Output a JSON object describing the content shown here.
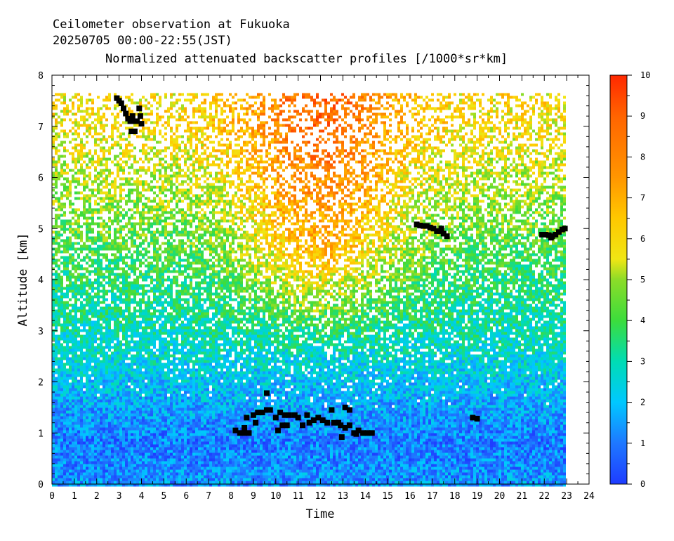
{
  "chart_data": {
    "type": "heatmap",
    "title_lines": [
      "Ceilometer observation at Fukuoka",
      "20250705  00:00-22:55(JST)",
      "Normalized attenuated backscatter profiles [/1000*sr*km]"
    ],
    "xlabel": "Time",
    "ylabel": "Altitude [km]",
    "xlim": [
      0,
      24
    ],
    "ylim": [
      0,
      8
    ],
    "x_ticks": [
      "0",
      "1",
      "2",
      "3",
      "4",
      "5",
      "6",
      "7",
      "8",
      "9",
      "10",
      "11",
      "12",
      "13",
      "14",
      "15",
      "16",
      "17",
      "18",
      "19",
      "20",
      "21",
      "22",
      "23",
      "24"
    ],
    "y_ticks": [
      "0",
      "1",
      "2",
      "3",
      "4",
      "5",
      "6",
      "7",
      "8"
    ],
    "colorbar": {
      "min": 0,
      "max": 10,
      "tick_labels": [
        "0",
        "1",
        "2",
        "3",
        "4",
        "5",
        "6",
        "7",
        "8",
        "9",
        "10"
      ],
      "stops": [
        {
          "v": 0,
          "color": "#1e3cff"
        },
        {
          "v": 1,
          "color": "#1e78ff"
        },
        {
          "v": 2,
          "color": "#00c8ff"
        },
        {
          "v": 3,
          "color": "#00dcb4"
        },
        {
          "v": 4,
          "color": "#3cdc3c"
        },
        {
          "v": 5,
          "color": "#8cdc28"
        },
        {
          "v": 5.5,
          "color": "#f0e614"
        },
        {
          "v": 6.5,
          "color": "#ffc800"
        },
        {
          "v": 7.5,
          "color": "#ff9600"
        },
        {
          "v": 9,
          "color": "#ff6400"
        },
        {
          "v": 10,
          "color": "#ff2800"
        }
      ]
    },
    "data_coverage": {
      "time_end": 22.92,
      "altitude_top": 7.65
    },
    "backscatter_profile": [
      {
        "alt": 0.0,
        "value": 1.4
      },
      {
        "alt": 0.3,
        "value": 1.2
      },
      {
        "alt": 0.8,
        "value": 1.0
      },
      {
        "alt": 1.5,
        "value": 1.6
      },
      {
        "alt": 2.5,
        "value": 2.6
      },
      {
        "alt": 4.0,
        "value": 3.6
      },
      {
        "alt": 5.5,
        "value": 4.8
      },
      {
        "alt": 7.0,
        "value": 6.0
      }
    ],
    "cloud_base_marks": {
      "color": "#000000",
      "points": [
        {
          "x": 2.9,
          "y": 7.55
        },
        {
          "x": 3.0,
          "y": 7.5
        },
        {
          "x": 3.1,
          "y": 7.45
        },
        {
          "x": 3.2,
          "y": 7.35
        },
        {
          "x": 3.3,
          "y": 7.25
        },
        {
          "x": 3.4,
          "y": 7.15
        },
        {
          "x": 3.5,
          "y": 7.1
        },
        {
          "x": 3.6,
          "y": 7.2
        },
        {
          "x": 3.7,
          "y": 7.1
        },
        {
          "x": 3.55,
          "y": 6.9
        },
        {
          "x": 3.7,
          "y": 6.9
        },
        {
          "x": 3.9,
          "y": 7.35
        },
        {
          "x": 3.95,
          "y": 7.2
        },
        {
          "x": 4.0,
          "y": 7.05
        },
        {
          "x": 3.8,
          "y": 7.1
        },
        {
          "x": 8.2,
          "y": 1.05
        },
        {
          "x": 8.4,
          "y": 1.0
        },
        {
          "x": 8.6,
          "y": 1.0
        },
        {
          "x": 8.8,
          "y": 1.0
        },
        {
          "x": 8.7,
          "y": 1.3
        },
        {
          "x": 9.0,
          "y": 1.35
        },
        {
          "x": 9.2,
          "y": 1.4
        },
        {
          "x": 9.4,
          "y": 1.4
        },
        {
          "x": 9.6,
          "y": 1.45
        },
        {
          "x": 9.75,
          "y": 1.45
        },
        {
          "x": 9.6,
          "y": 1.78
        },
        {
          "x": 8.6,
          "y": 1.1
        },
        {
          "x": 9.1,
          "y": 1.2
        },
        {
          "x": 10.0,
          "y": 1.3
        },
        {
          "x": 10.2,
          "y": 1.4
        },
        {
          "x": 10.4,
          "y": 1.35
        },
        {
          "x": 10.6,
          "y": 1.35
        },
        {
          "x": 10.3,
          "y": 1.15
        },
        {
          "x": 10.5,
          "y": 1.15
        },
        {
          "x": 10.1,
          "y": 1.05
        },
        {
          "x": 10.85,
          "y": 1.35
        },
        {
          "x": 11.0,
          "y": 1.3
        },
        {
          "x": 11.2,
          "y": 1.15
        },
        {
          "x": 11.4,
          "y": 1.35
        },
        {
          "x": 11.5,
          "y": 1.2
        },
        {
          "x": 11.7,
          "y": 1.25
        },
        {
          "x": 11.9,
          "y": 1.3
        },
        {
          "x": 12.1,
          "y": 1.25
        },
        {
          "x": 12.3,
          "y": 1.2
        },
        {
          "x": 12.5,
          "y": 1.45
        },
        {
          "x": 12.6,
          "y": 1.2
        },
        {
          "x": 12.8,
          "y": 1.2
        },
        {
          "x": 12.9,
          "y": 1.15
        },
        {
          "x": 12.95,
          "y": 0.92
        },
        {
          "x": 13.1,
          "y": 1.5
        },
        {
          "x": 13.3,
          "y": 1.45
        },
        {
          "x": 13.1,
          "y": 1.1
        },
        {
          "x": 13.3,
          "y": 1.15
        },
        {
          "x": 13.5,
          "y": 1.0
        },
        {
          "x": 13.7,
          "y": 1.05
        },
        {
          "x": 13.9,
          "y": 1.0
        },
        {
          "x": 14.1,
          "y": 1.0
        },
        {
          "x": 14.3,
          "y": 1.0
        },
        {
          "x": 13.6,
          "y": 0.98
        },
        {
          "x": 16.3,
          "y": 5.08
        },
        {
          "x": 16.45,
          "y": 5.06
        },
        {
          "x": 16.6,
          "y": 5.05
        },
        {
          "x": 16.75,
          "y": 5.05
        },
        {
          "x": 16.9,
          "y": 5.02
        },
        {
          "x": 17.05,
          "y": 5.0
        },
        {
          "x": 17.2,
          "y": 4.95
        },
        {
          "x": 17.35,
          "y": 4.95
        },
        {
          "x": 17.5,
          "y": 4.9
        },
        {
          "x": 17.65,
          "y": 4.85
        },
        {
          "x": 17.4,
          "y": 5.0
        },
        {
          "x": 18.8,
          "y": 1.3
        },
        {
          "x": 19.0,
          "y": 1.28
        },
        {
          "x": 21.9,
          "y": 4.88
        },
        {
          "x": 22.05,
          "y": 4.88
        },
        {
          "x": 22.2,
          "y": 4.87
        },
        {
          "x": 22.35,
          "y": 4.85
        },
        {
          "x": 22.5,
          "y": 4.88
        },
        {
          "x": 22.65,
          "y": 4.93
        },
        {
          "x": 22.8,
          "y": 4.98
        },
        {
          "x": 22.92,
          "y": 5.0
        },
        {
          "x": 22.3,
          "y": 4.82
        }
      ]
    }
  }
}
